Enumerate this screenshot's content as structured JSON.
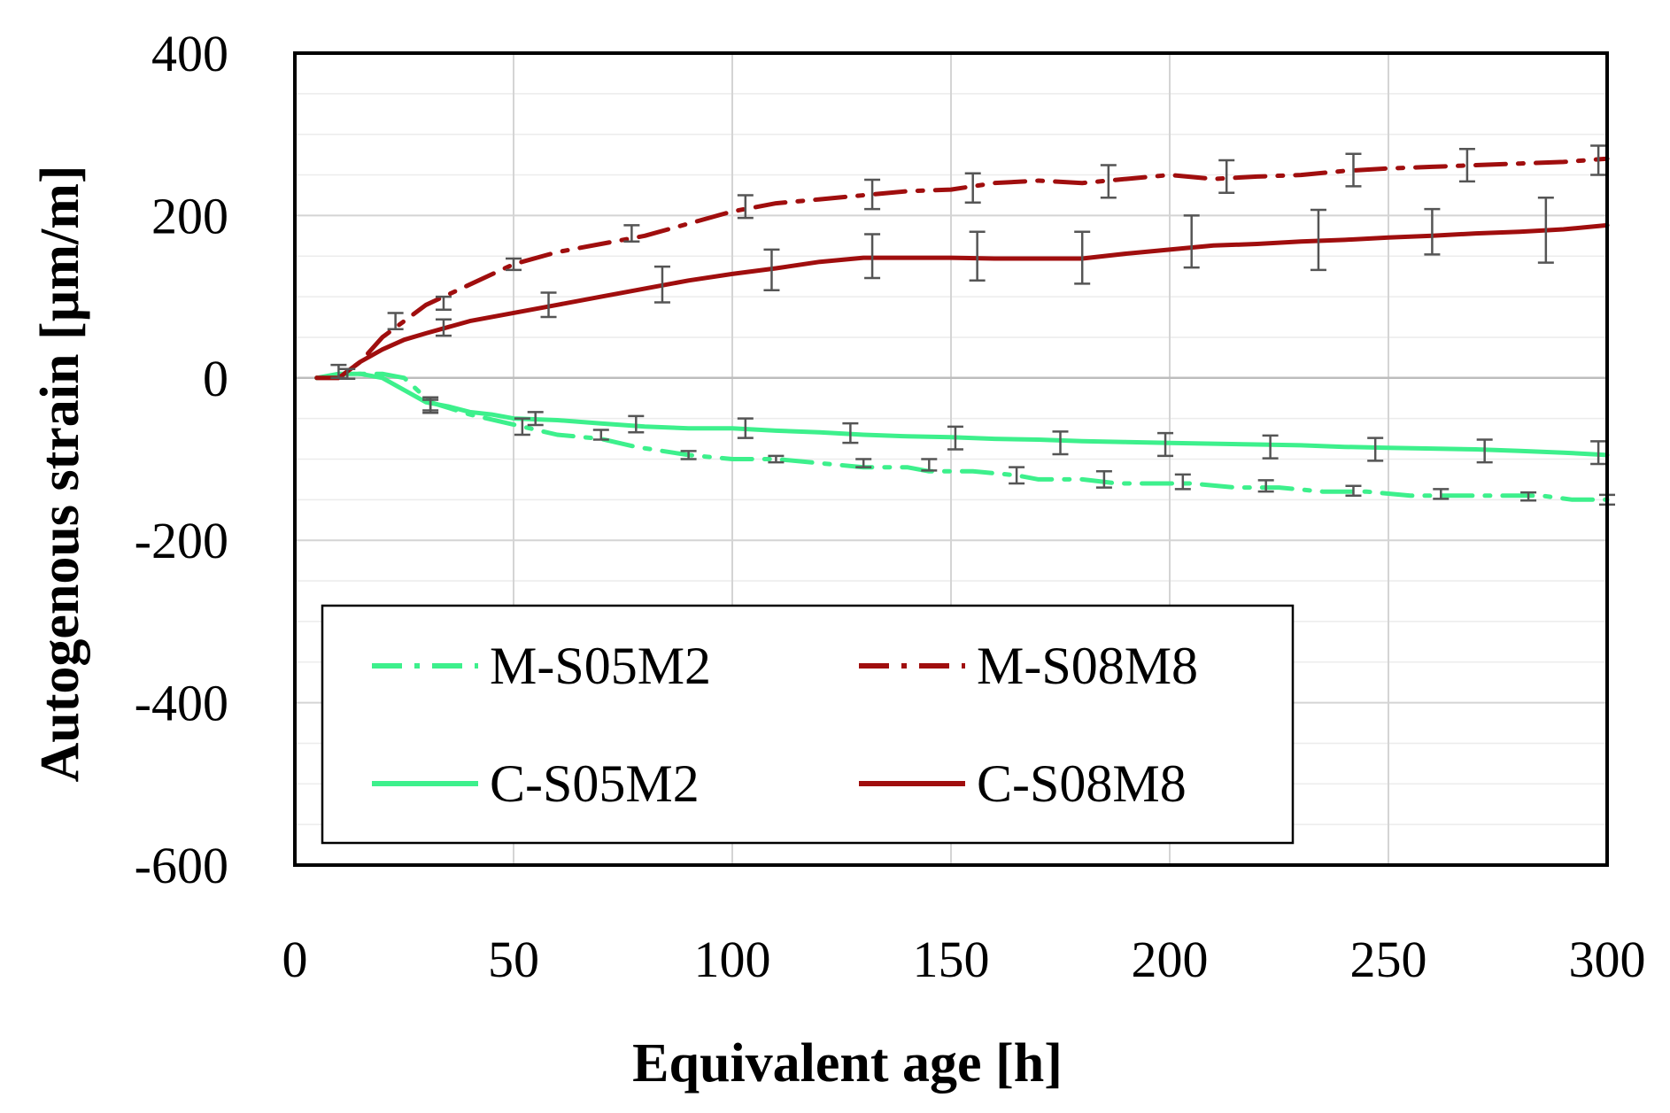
{
  "chart_data": {
    "type": "line",
    "xlabel": "Equivalent age [h]",
    "ylabel": "Autogenous strain [µm/m]",
    "xlim": [
      0,
      300
    ],
    "ylim": [
      -600,
      400
    ],
    "xticks": [
      0,
      50,
      100,
      150,
      200,
      250,
      300
    ],
    "yticks": [
      400,
      200,
      0,
      -200,
      -400,
      -600
    ],
    "xtick_labels": [
      "0",
      "50",
      "100",
      "150",
      "200",
      "250",
      "300"
    ],
    "ytick_labels": [
      "400",
      "200",
      "0",
      "-200",
      "-400",
      "-600"
    ],
    "grid": true,
    "legend_position": "bottom-left",
    "series": [
      {
        "name": "M-S05M2",
        "color": "#3df08c",
        "dash": "dash-dot",
        "x": [
          5,
          12,
          20,
          25,
          31,
          40,
          52,
          60,
          70,
          78,
          90,
          100,
          110,
          120,
          130,
          140,
          145,
          155,
          165,
          170,
          180,
          188,
          195,
          205,
          215,
          225,
          235,
          245,
          255,
          265,
          275,
          285,
          292,
          300
        ],
        "y": [
          0,
          5,
          5,
          0,
          -30,
          -45,
          -60,
          -70,
          -75,
          -85,
          -95,
          -100,
          -100,
          -105,
          -110,
          -110,
          -115,
          -115,
          -120,
          -125,
          -125,
          -130,
          -130,
          -130,
          -135,
          -135,
          -140,
          -140,
          -145,
          -145,
          -145,
          -145,
          -150,
          -150
        ],
        "errors": [
          [
            31,
            -35,
            8
          ],
          [
            52,
            -60,
            10
          ],
          [
            70,
            -70,
            6
          ],
          [
            90,
            -95,
            5
          ],
          [
            110,
            -100,
            4
          ],
          [
            130,
            -105,
            5
          ],
          [
            145,
            -107,
            7
          ],
          [
            165,
            -120,
            10
          ],
          [
            185,
            -125,
            10
          ],
          [
            203,
            -128,
            9
          ],
          [
            222,
            -133,
            7
          ],
          [
            242,
            -139,
            6
          ],
          [
            262,
            -143,
            6
          ],
          [
            282,
            -146,
            5
          ],
          [
            300,
            -150,
            6
          ]
        ]
      },
      {
        "name": "M-S08M8",
        "color": "#a00e0e",
        "dash": "dash-dot",
        "x": [
          5,
          10,
          15,
          20,
          25,
          30,
          40,
          50,
          60,
          70,
          80,
          90,
          100,
          110,
          120,
          130,
          140,
          150,
          160,
          170,
          180,
          190,
          200,
          210,
          220,
          230,
          240,
          250,
          260,
          270,
          280,
          290,
          300
        ],
        "y": [
          0,
          0,
          20,
          50,
          70,
          90,
          115,
          140,
          155,
          165,
          175,
          190,
          205,
          215,
          220,
          225,
          230,
          232,
          240,
          243,
          240,
          245,
          250,
          245,
          248,
          250,
          255,
          258,
          260,
          262,
          264,
          266,
          270
        ],
        "errors": [
          [
            23,
            70,
            10
          ],
          [
            34,
            92,
            8
          ],
          [
            50,
            140,
            7
          ],
          [
            77,
            178,
            10
          ],
          [
            103,
            211,
            14
          ],
          [
            132,
            226,
            18
          ],
          [
            155,
            234,
            18
          ],
          [
            186,
            242,
            20
          ],
          [
            213,
            248,
            20
          ],
          [
            242,
            256,
            20
          ],
          [
            268,
            262,
            20
          ],
          [
            298,
            268,
            18
          ]
        ]
      },
      {
        "name": "C-S05M2",
        "color": "#3df08c",
        "dash": "solid",
        "x": [
          5,
          10,
          15,
          20,
          25,
          30,
          35,
          40,
          45,
          50,
          60,
          70,
          80,
          90,
          100,
          110,
          120,
          130,
          140,
          150,
          160,
          170,
          180,
          190,
          200,
          210,
          220,
          230,
          240,
          250,
          260,
          270,
          280,
          290,
          300
        ],
        "y": [
          0,
          5,
          5,
          0,
          -15,
          -30,
          -35,
          -42,
          -45,
          -50,
          -52,
          -56,
          -60,
          -62,
          -62,
          -65,
          -67,
          -70,
          -72,
          -73,
          -75,
          -76,
          -78,
          -79,
          -80,
          -81,
          -82,
          -83,
          -85,
          -86,
          -87,
          -88,
          -90,
          -92,
          -95
        ],
        "errors": [
          [
            10,
            8,
            8
          ],
          [
            31,
            -32,
            8
          ],
          [
            55,
            -50,
            8
          ],
          [
            78,
            -57,
            10
          ],
          [
            103,
            -62,
            12
          ],
          [
            127,
            -68,
            12
          ],
          [
            151,
            -74,
            14
          ],
          [
            175,
            -80,
            14
          ],
          [
            199,
            -82,
            14
          ],
          [
            223,
            -85,
            14
          ],
          [
            247,
            -88,
            14
          ],
          [
            272,
            -90,
            14
          ],
          [
            298,
            -92,
            14
          ]
        ]
      },
      {
        "name": "C-S08M8",
        "color": "#a00e0e",
        "dash": "solid",
        "x": [
          5,
          10,
          15,
          20,
          25,
          30,
          40,
          50,
          60,
          70,
          80,
          90,
          100,
          110,
          120,
          130,
          140,
          150,
          160,
          170,
          180,
          190,
          200,
          210,
          220,
          230,
          240,
          250,
          260,
          270,
          280,
          290,
          300
        ],
        "y": [
          0,
          0,
          20,
          35,
          47,
          55,
          70,
          80,
          90,
          100,
          110,
          120,
          128,
          135,
          143,
          148,
          148,
          148,
          147,
          147,
          147,
          153,
          158,
          163,
          165,
          168,
          170,
          173,
          175,
          178,
          180,
          183,
          188
        ],
        "errors": [
          [
            12,
            5,
            6
          ],
          [
            34,
            62,
            10
          ],
          [
            58,
            90,
            15
          ],
          [
            84,
            115,
            22
          ],
          [
            109,
            133,
            25
          ],
          [
            132,
            150,
            27
          ],
          [
            156,
            150,
            30
          ],
          [
            180,
            148,
            32
          ],
          [
            205,
            168,
            32
          ],
          [
            234,
            170,
            37
          ],
          [
            260,
            180,
            28
          ],
          [
            286,
            182,
            40
          ]
        ]
      }
    ]
  }
}
